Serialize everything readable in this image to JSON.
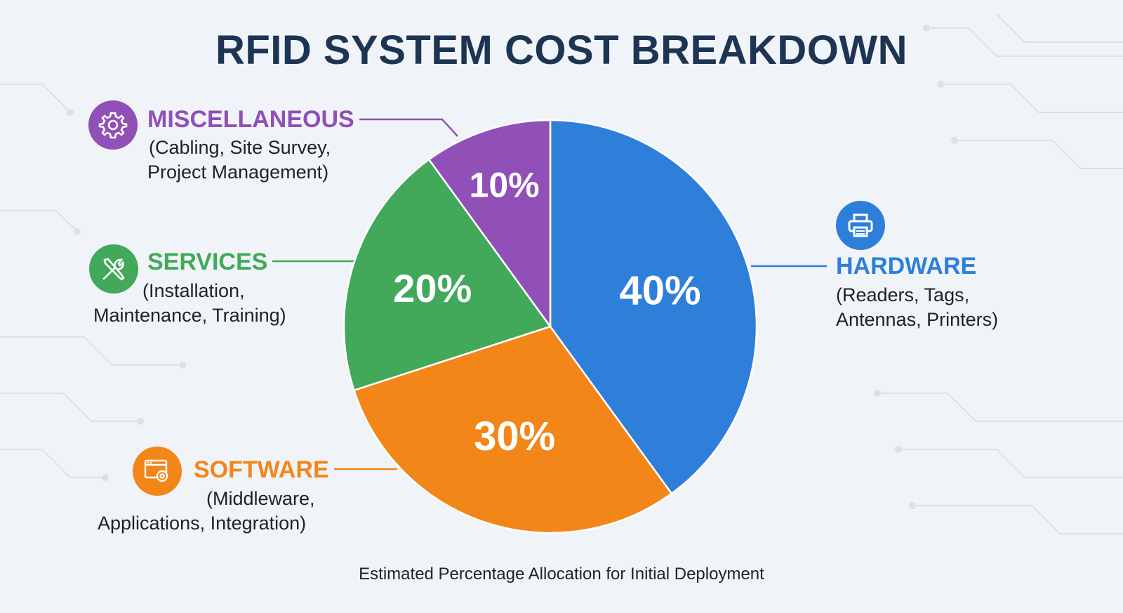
{
  "chart_data": {
    "type": "pie",
    "title": "RFID SYSTEM COST BREAKDOWN",
    "subtitle": "Estimated Percentage Allocation for Initial Deployment",
    "slices": [
      {
        "label": "HARDWARE",
        "description": [
          "(Readers, Tags,",
          "Antennas, Printers)"
        ],
        "value": 40,
        "value_label": "40%",
        "color": "#2e7fd9",
        "icon": "printer-icon"
      },
      {
        "label": "SOFTWARE",
        "description": [
          "(Middleware,",
          "Applications, Integration)"
        ],
        "value": 30,
        "value_label": "30%",
        "color": "#f28619",
        "icon": "software-settings-icon"
      },
      {
        "label": "SERVICES",
        "description": [
          "(Installation,",
          "Maintenance, Training)"
        ],
        "value": 20,
        "value_label": "20%",
        "color": "#42a85a",
        "icon": "tools-icon"
      },
      {
        "label": "MISCELLANEOUS",
        "description": [
          "(Cabling, Site Survey,",
          "Project Management)"
        ],
        "value": 10,
        "value_label": "10%",
        "color": "#9050b8",
        "icon": "gear-icon"
      }
    ],
    "start": "12 o'clock",
    "direction": "clockwise",
    "legend": "callouts"
  }
}
